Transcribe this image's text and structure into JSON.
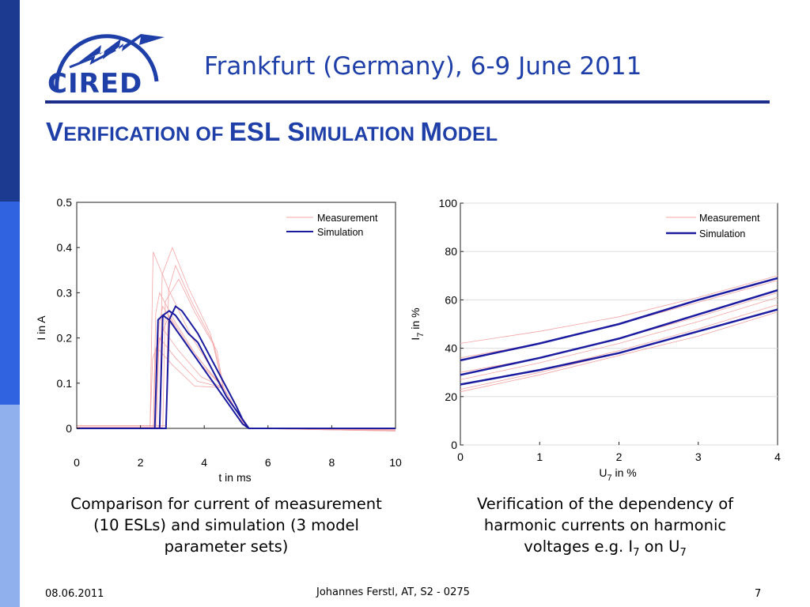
{
  "header": {
    "logo_text": "CIRED",
    "conference": "Frankfurt (Germany), 6-9 June 2011"
  },
  "slide": {
    "title_parts": [
      {
        "big": "V",
        "small": "ERIFICATION OF "
      },
      {
        "big": "ESL ",
        "small": ""
      },
      {
        "big": "S",
        "small": "IMULATION "
      },
      {
        "big": "M",
        "small": "ODEL"
      }
    ]
  },
  "colors": {
    "brand": "#1f3fa8",
    "rule": "#1c2e8c",
    "measurement": "#f4a5a5",
    "simulation": "#1b1ba0",
    "sidebar": [
      "#1c3a8f",
      "#2f63e0",
      "#8fb0ec"
    ]
  },
  "captions": {
    "left": [
      "Comparison for current of measurement",
      "(10 ESLs) and simulation (3 model",
      "parameter sets)"
    ],
    "right_line1": "Verification of the dependency of",
    "right_line2": "harmonic currents on harmonic",
    "right_line3_pre": "voltages e.g. I",
    "right_line3_sub1": "7",
    "right_line3_mid": " on U",
    "right_line3_sub2": "7"
  },
  "footer": {
    "date": "08.06.2011",
    "author": "Johannes Ferstl, AT, S2 - 0275",
    "page": "7"
  },
  "chart_data": [
    {
      "type": "line",
      "xlabel": "t in ms",
      "ylabel": "I in A",
      "xlim": [
        0,
        10
      ],
      "ylim": [
        0,
        0.5
      ],
      "xticks": [
        "0",
        "2",
        "4",
        "6",
        "8",
        "10"
      ],
      "yticks": [
        "0",
        "0.1",
        "0.2",
        "0.3",
        "0.4",
        "0.5"
      ],
      "legend": [
        "Measurement",
        "Simulation"
      ],
      "legend_position": "top-right",
      "grid": false,
      "measurement": [
        {
          "on": 2.3,
          "peak": 0.39,
          "tpeak": 2.4
        },
        {
          "on": 2.4,
          "peak": 0.3,
          "tpeak": 2.6
        },
        {
          "on": 2.5,
          "peak": 0.27,
          "tpeak": 2.7
        },
        {
          "on": 2.6,
          "peak": 0.4,
          "tpeak": 3.0
        },
        {
          "on": 2.7,
          "peak": 0.33,
          "tpeak": 3.2
        },
        {
          "on": 2.5,
          "peak": 0.22,
          "tpeak": 2.7
        },
        {
          "on": 2.4,
          "peak": 0.2,
          "tpeak": 2.6
        },
        {
          "on": 2.6,
          "peak": 0.25,
          "tpeak": 2.9
        },
        {
          "on": 2.8,
          "peak": 0.36,
          "tpeak": 3.1
        },
        {
          "on": 2.3,
          "peak": 0.18,
          "tpeak": 2.5
        }
      ],
      "simulation": [
        {
          "name": "Simulation",
          "x": [
            0,
            2.45,
            2.55,
            2.7,
            2.9,
            3.1,
            3.3,
            3.5,
            3.8,
            4.1,
            4.4,
            4.7,
            5.0,
            5.2,
            5.4,
            10
          ],
          "y": [
            0,
            0,
            0.24,
            0.25,
            0.24,
            0.22,
            0.2,
            0.18,
            0.15,
            0.12,
            0.09,
            0.06,
            0.03,
            0.01,
            0,
            0
          ]
        },
        {
          "name": "Simulation",
          "x": [
            0,
            2.6,
            2.7,
            2.9,
            3.1,
            3.3,
            3.5,
            3.8,
            4.1,
            4.4,
            4.7,
            5.0,
            5.2,
            5.4,
            10
          ],
          "y": [
            0,
            0,
            0.25,
            0.26,
            0.25,
            0.23,
            0.21,
            0.19,
            0.15,
            0.11,
            0.07,
            0.04,
            0.02,
            0,
            0
          ]
        },
        {
          "name": "Simulation",
          "x": [
            0,
            2.8,
            2.9,
            3.1,
            3.3,
            3.5,
            3.8,
            4.1,
            4.4,
            4.7,
            5.0,
            5.2,
            5.4,
            10
          ],
          "y": [
            0,
            0,
            0.24,
            0.27,
            0.26,
            0.24,
            0.21,
            0.17,
            0.13,
            0.09,
            0.05,
            0.02,
            0,
            0
          ]
        }
      ]
    },
    {
      "type": "line",
      "xlabel_main": "U",
      "xlabel_sub": "7",
      "xlabel_tail": " in %",
      "ylabel_main": "I",
      "ylabel_sub": "7",
      "ylabel_tail": " in %",
      "xlim": [
        0,
        4
      ],
      "ylim": [
        0,
        100
      ],
      "xticks": [
        "0",
        "1",
        "2",
        "3",
        "4"
      ],
      "yticks": [
        "0",
        "20",
        "40",
        "60",
        "80",
        "100"
      ],
      "legend": [
        "Measurement",
        "Simulation"
      ],
      "legend_position": "top-right",
      "grid": true,
      "measurement": [
        {
          "x": [
            0,
            1,
            2,
            3,
            4
          ],
          "y": [
            42,
            47,
            53,
            61,
            70
          ]
        },
        {
          "x": [
            0,
            1,
            2,
            3,
            4
          ],
          "y": [
            36,
            42,
            50,
            59,
            68
          ]
        },
        {
          "x": [
            0,
            1,
            2,
            3,
            4
          ],
          "y": [
            30,
            36,
            44,
            53,
            63
          ]
        },
        {
          "x": [
            0,
            1,
            2,
            3,
            4
          ],
          "y": [
            27,
            34,
            42,
            51,
            61
          ]
        },
        {
          "x": [
            0,
            1,
            2,
            3,
            4
          ],
          "y": [
            25,
            31,
            39,
            48,
            58
          ]
        },
        {
          "x": [
            0,
            1,
            2,
            3,
            4
          ],
          "y": [
            23,
            30,
            38,
            47,
            56
          ]
        },
        {
          "x": [
            0,
            1,
            2,
            3,
            4
          ],
          "y": [
            22,
            29,
            37,
            45,
            55
          ]
        }
      ],
      "simulation": [
        {
          "name": "Simulation",
          "x": [
            0,
            1,
            2,
            3,
            4
          ],
          "y": [
            35,
            42,
            50,
            60,
            69
          ]
        },
        {
          "name": "Simulation",
          "x": [
            0,
            1,
            2,
            3,
            4
          ],
          "y": [
            29,
            36,
            44,
            54,
            64
          ]
        },
        {
          "name": "Simulation",
          "x": [
            0,
            1,
            2,
            3,
            4
          ],
          "y": [
            25,
            31,
            38,
            47,
            56
          ]
        }
      ]
    }
  ]
}
